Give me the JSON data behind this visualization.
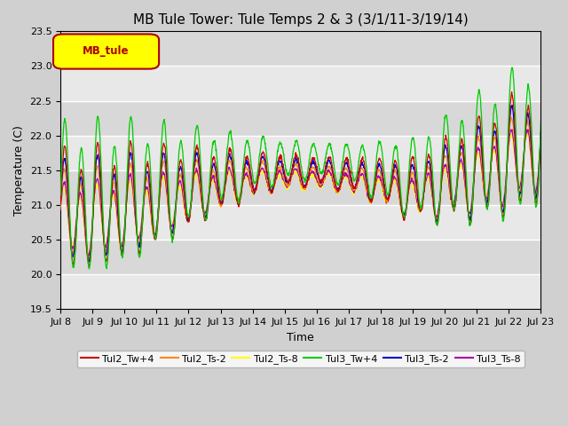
{
  "title": "MB Tule Tower: Tule Temps 2 & 3 (3/1/11-3/19/14)",
  "xlabel": "Time",
  "ylabel": "Temperature (C)",
  "ylim": [
    19.5,
    23.5
  ],
  "xlim": [
    0,
    15
  ],
  "x_tick_labels": [
    "Jul 8",
    "Jul 9",
    "Jul 10",
    "Jul 11",
    "Jul 12",
    "Jul 13",
    "Jul 14",
    "Jul 15",
    "Jul 16",
    "Jul 17",
    "Jul 18",
    "Jul 19",
    "Jul 20",
    "Jul 21",
    "Jul 22",
    "Jul 23"
  ],
  "x_tick_positions": [
    0,
    1,
    2,
    3,
    4,
    5,
    6,
    7,
    8,
    9,
    10,
    11,
    12,
    13,
    14,
    15
  ],
  "legend_label": "MB_tule",
  "series_colors": [
    "#cc0000",
    "#ff8800",
    "#ffff00",
    "#00cc00",
    "#0000cc",
    "#aa00aa"
  ],
  "series_labels": [
    "Tul2_Tw+4",
    "Tul2_Ts-2",
    "Tul2_Ts-8",
    "Tul3_Tw+4",
    "Tul3_Ts-2",
    "Tul3_Ts-8"
  ],
  "fig_width": 6.4,
  "fig_height": 4.8,
  "dpi": 100,
  "title_fontsize": 11,
  "axis_fontsize": 9,
  "tick_fontsize": 8
}
